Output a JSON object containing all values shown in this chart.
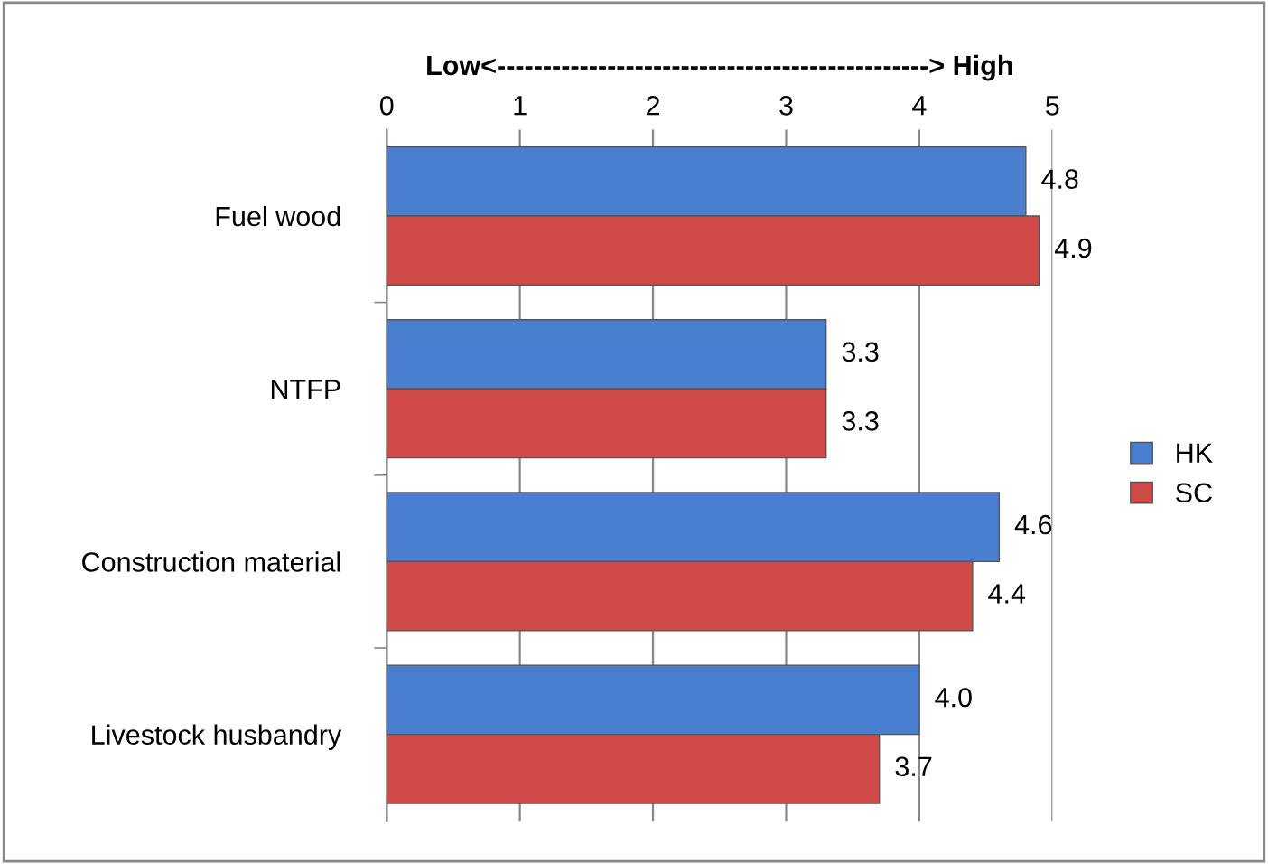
{
  "chart_data": {
    "type": "bar",
    "orientation": "horizontal",
    "xlabel": "Low<-----------------------------------------------> High",
    "categories": [
      "Fuel wood",
      "NTFP",
      "Construction material",
      "Livestock husbandry"
    ],
    "series": [
      {
        "name": "HK",
        "color": "#4a7ecf",
        "values": [
          4.8,
          3.3,
          4.6,
          4.0
        ],
        "value_labels": [
          "4.8",
          "3.3",
          "4.6",
          "4.0"
        ]
      },
      {
        "name": "SC",
        "color": "#d04a48",
        "values": [
          4.9,
          3.3,
          4.4,
          3.7
        ],
        "value_labels": [
          "4.9",
          "3.3",
          "4.4",
          "3.7"
        ]
      }
    ],
    "xlim": [
      0,
      5
    ],
    "xticks": [
      0,
      1,
      2,
      3,
      4,
      5
    ],
    "grid": "x",
    "legend": "right"
  }
}
